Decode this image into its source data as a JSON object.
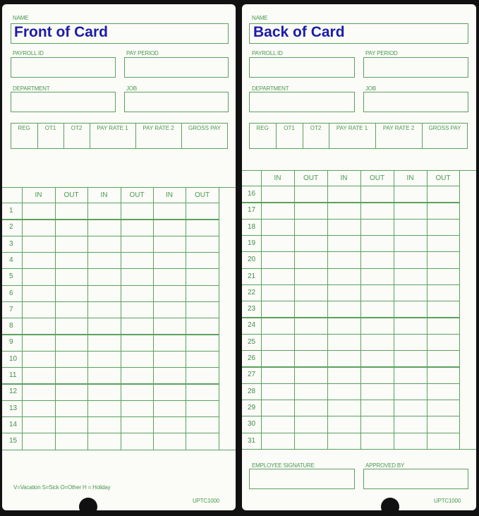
{
  "front": {
    "name_label": "NAME",
    "name_value": "Front of Card",
    "payroll_label": "PAYROLL ID",
    "pay_period_label": "PAY PERIOD",
    "department_label": "DEPARTMENT",
    "job_label": "JOB",
    "summary_headers": [
      "REG",
      "OT1",
      "OT2",
      "PAY RATE 1",
      "PAY RATE 2",
      "GROSS PAY"
    ],
    "time_headers": [
      "IN",
      "OUT",
      "IN",
      "OUT",
      "IN",
      "OUT"
    ],
    "rows": [
      "1",
      "2",
      "3",
      "4",
      "5",
      "6",
      "7",
      "8",
      "9",
      "10",
      "11",
      "12",
      "13",
      "14",
      "15"
    ],
    "legend": "V=Vacation  S=Sick  O=Other H = Holiday",
    "code": "UPTC1000"
  },
  "back": {
    "name_label": "NAME",
    "name_value": "Back of Card",
    "payroll_label": "PAYROLL ID",
    "pay_period_label": "PAY PERIOD",
    "department_label": "DEPARTMENT",
    "job_label": "JOB",
    "summary_headers": [
      "REG",
      "OT1",
      "OT2",
      "PAY RATE 1",
      "PAY RATE 2",
      "GROSS PAY"
    ],
    "time_headers": [
      "IN",
      "OUT",
      "IN",
      "OUT",
      "IN",
      "OUT"
    ],
    "rows": [
      "16",
      "17",
      "18",
      "19",
      "20",
      "21",
      "22",
      "23",
      "24",
      "25",
      "26",
      "27",
      "28",
      "29",
      "30",
      "31"
    ],
    "signature_label": "EMPLOYEE SIGNATURE",
    "approved_label": "APPROVED BY",
    "code": "UPTC1000"
  },
  "colors": {
    "ink_green": "#5aa25c",
    "title_blue": "#1c1ca8"
  }
}
